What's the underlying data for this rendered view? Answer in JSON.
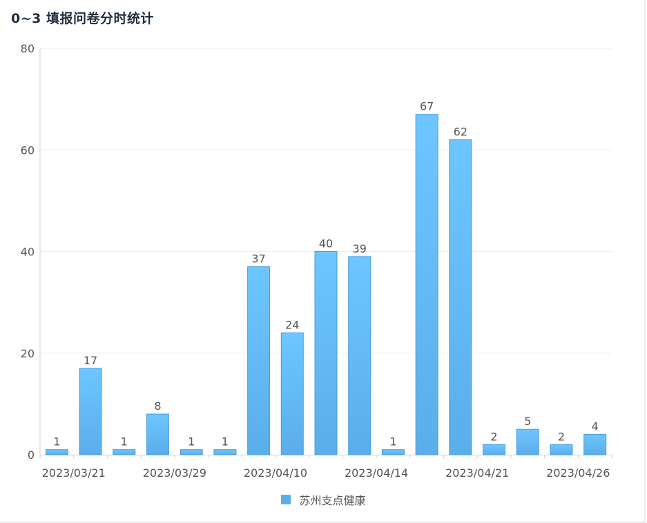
{
  "title": "0~3 填报问卷分时统计",
  "colors": {
    "bar_top": "#6dc6ff",
    "bar_bottom": "#5aaeea",
    "bar_stroke": "#4a9de0",
    "legend": "#5aaeea",
    "grid": "#eeeeee",
    "axis": "#cfcfcf",
    "tick_text": "#555555"
  },
  "chart_data": {
    "type": "bar",
    "title": "0~3 填报问卷分时统计",
    "categories": [
      "2023/03/21",
      "",
      "",
      "2023/03/29",
      "",
      "",
      "2023/04/10",
      "",
      "",
      "2023/04/14",
      "",
      "",
      "2023/04/21",
      "",
      "",
      "2023/04/26",
      ""
    ],
    "series": [
      {
        "name": "苏州支点健康",
        "values": [
          1,
          17,
          1,
          8,
          1,
          1,
          37,
          24,
          40,
          39,
          1,
          67,
          62,
          2,
          5,
          2,
          4
        ]
      }
    ],
    "y_ticks": [
      0,
      20,
      40,
      60,
      80
    ],
    "ylim": [
      0,
      80
    ],
    "x_tick_labels": [
      "2023/03/21",
      "2023/03/29",
      "2023/04/10",
      "2023/04/14",
      "2023/04/21",
      "2023/04/26"
    ],
    "grid": true,
    "legend": "bottom-center"
  }
}
